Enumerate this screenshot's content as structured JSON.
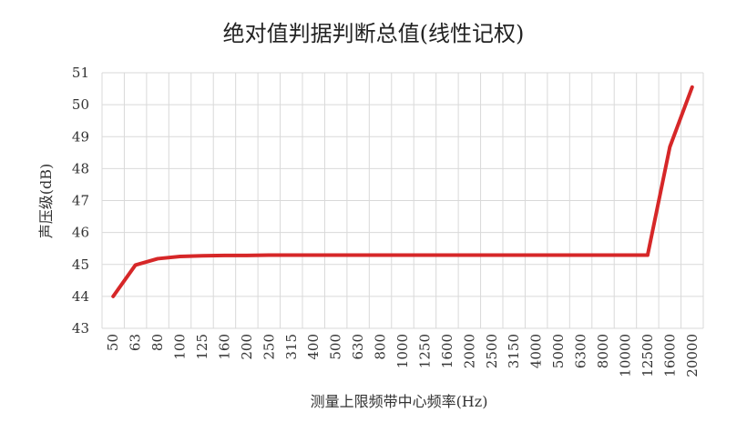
{
  "chart_data": {
    "type": "line",
    "title": "绝对值判据判断总值(线性记权)",
    "xlabel": "测量上限频带中心频率(Hz)",
    "ylabel": "声压级(dB)",
    "ylim": [
      43,
      51
    ],
    "yticks": [
      43,
      44,
      45,
      46,
      47,
      48,
      49,
      50,
      51
    ],
    "grid": {
      "horizontal": true,
      "vertical": true
    },
    "legend": "none",
    "line_color": "#d62728",
    "categories": [
      "50",
      "63",
      "80",
      "100",
      "125",
      "160",
      "200",
      "250",
      "315",
      "400",
      "500",
      "630",
      "800",
      "1000",
      "1250",
      "1600",
      "2000",
      "2500",
      "3150",
      "4000",
      "5000",
      "6300",
      "8000",
      "10000",
      "12500",
      "16000",
      "20000"
    ],
    "series": [
      {
        "values": [
          44.0,
          44.98,
          45.18,
          45.25,
          45.27,
          45.28,
          45.28,
          45.29,
          45.29,
          45.29,
          45.29,
          45.29,
          45.29,
          45.29,
          45.29,
          45.29,
          45.29,
          45.29,
          45.29,
          45.29,
          45.29,
          45.29,
          45.29,
          45.29,
          45.29,
          48.68,
          50.55
        ]
      }
    ]
  }
}
